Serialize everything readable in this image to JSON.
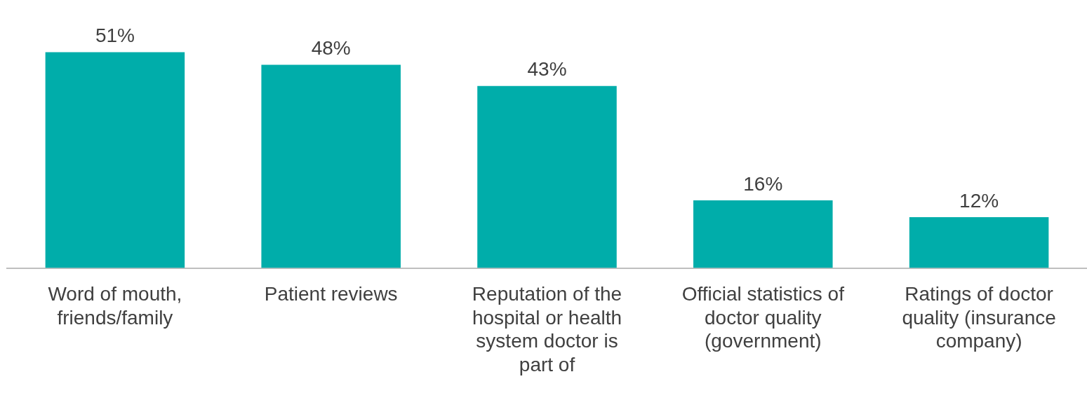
{
  "chart_data": {
    "type": "bar",
    "categories": [
      "Word of mouth, friends/family",
      "Patient reviews",
      "Reputation of the hospital or health system doctor is part of",
      "Official statistics of doctor quality (government)",
      "Ratings of doctor quality (insurance company)"
    ],
    "values": [
      51,
      48,
      43,
      16,
      12
    ],
    "value_labels": [
      "51%",
      "48%",
      "43%",
      "16%",
      "12%"
    ],
    "color": "#00adaa",
    "grid": false,
    "legend": false
  }
}
